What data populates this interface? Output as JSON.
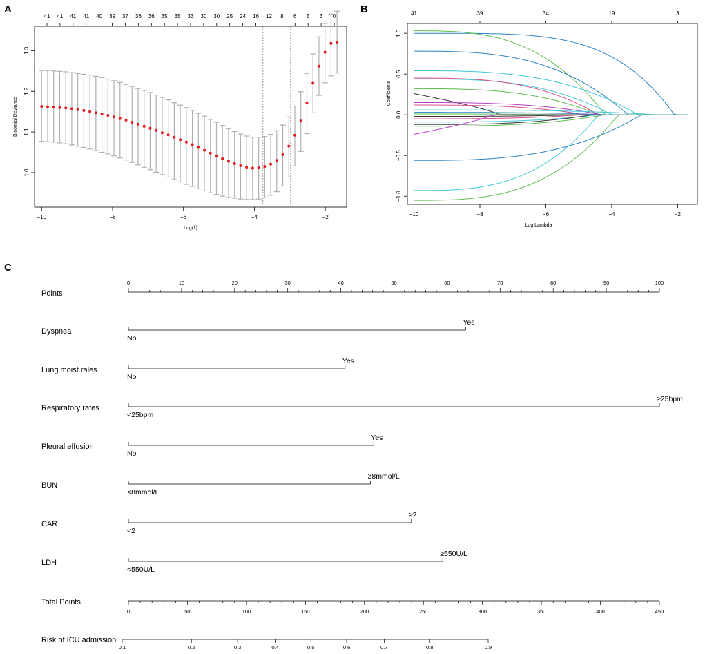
{
  "panel_labels": {
    "a": "A",
    "b": "B",
    "c": "C"
  },
  "chart_data": [
    {
      "id": "A",
      "type": "scatter",
      "subtype": "cross-validation error bars",
      "xlabel": "Log(λ)",
      "ylabel": "Binomial Deviance",
      "xlim": [
        -10.2,
        -1.4
      ],
      "ylim": [
        0.915,
        1.36
      ],
      "x_ticks": [
        -10,
        -8,
        -6,
        -4,
        -2
      ],
      "y_ticks": [
        1.0,
        1.1,
        1.2,
        1.3
      ],
      "x_tick_labels": [
        "−10",
        "−8",
        "−6",
        "−4",
        "−2"
      ],
      "y_tick_labels": [
        "1.0",
        "1.1",
        "1.2",
        "1.3"
      ],
      "top_axis_positions": [
        -10,
        -9.72,
        -9.44,
        -9.16,
        -8.88,
        -8.6,
        -8.32,
        -8.04,
        -7.76,
        -7.48,
        -7.2,
        -6.92,
        -6.64,
        -6.36,
        -6.08,
        -5.8,
        -5.52,
        -5.24,
        -4.96,
        -4.68,
        -4.4,
        -4.12,
        -3.84,
        -3.56,
        -3.28,
        -3.0,
        -2.72,
        -2.44,
        -2.16,
        -1.88
      ],
      "top_axis_labels": [
        "41",
        "41",
        "41",
        "41",
        "40",
        "39",
        "37",
        "36",
        "36",
        "35",
        "35",
        "33",
        "30",
        "30",
        "25",
        "24",
        "16",
        "12",
        "8",
        "6",
        "5",
        "3",
        "0"
      ],
      "top_axis_label_x": [
        -10,
        -9.59,
        -9.18,
        -8.77,
        -8.36,
        -7.94,
        -7.53,
        -7.12,
        -6.71,
        -6.3,
        -5.89,
        -5.48,
        -5.07,
        -4.66,
        -4.25,
        -3.84,
        -3.43,
        -3.02,
        -2.61,
        -2.2,
        -1.79,
        -1.68,
        -1.64
      ],
      "x": [
        -10,
        -9.83,
        -9.66,
        -9.49,
        -9.32,
        -9.15,
        -8.98,
        -8.81,
        -8.64,
        -8.47,
        -8.3,
        -8.13,
        -7.96,
        -7.79,
        -7.62,
        -7.45,
        -7.28,
        -7.11,
        -6.94,
        -6.77,
        -6.6,
        -6.43,
        -6.26,
        -6.09,
        -5.92,
        -5.75,
        -5.58,
        -5.41,
        -5.24,
        -5.07,
        -4.9,
        -4.73,
        -4.56,
        -4.39,
        -4.22,
        -4.05,
        -3.88,
        -3.71,
        -3.54,
        -3.37,
        -3.2,
        -3.03,
        -2.86,
        -2.69,
        -2.52,
        -2.35,
        -2.18,
        -2.01,
        -1.84,
        -1.67
      ],
      "y": [
        1.163,
        1.162,
        1.161,
        1.16,
        1.159,
        1.157,
        1.155,
        1.153,
        1.15,
        1.147,
        1.144,
        1.141,
        1.137,
        1.133,
        1.129,
        1.124,
        1.119,
        1.114,
        1.109,
        1.104,
        1.098,
        1.093,
        1.087,
        1.081,
        1.075,
        1.069,
        1.062,
        1.055,
        1.048,
        1.041,
        1.034,
        1.028,
        1.022,
        1.017,
        1.013,
        1.011,
        1.012,
        1.015,
        1.021,
        1.03,
        1.044,
        1.065,
        1.092,
        1.127,
        1.172,
        1.22,
        1.262,
        1.296,
        1.318,
        1.321
      ],
      "err_low": [
        1.077,
        1.076,
        1.075,
        1.073,
        1.071,
        1.068,
        1.065,
        1.062,
        1.058,
        1.054,
        1.05,
        1.046,
        1.041,
        1.036,
        1.031,
        1.025,
        1.019,
        1.013,
        1.007,
        1.001,
        0.995,
        0.989,
        0.983,
        0.977,
        0.971,
        0.966,
        0.96,
        0.955,
        0.95,
        0.946,
        0.942,
        0.939,
        0.937,
        0.935,
        0.934,
        0.934,
        0.935,
        0.938,
        0.944,
        0.953,
        0.967,
        0.989,
        1.016,
        1.052,
        1.096,
        1.147,
        1.19,
        1.221,
        1.238,
        1.245
      ],
      "err_high": [
        1.251,
        1.251,
        1.25,
        1.249,
        1.248,
        1.246,
        1.244,
        1.242,
        1.24,
        1.237,
        1.234,
        1.23,
        1.226,
        1.222,
        1.217,
        1.212,
        1.207,
        1.202,
        1.197,
        1.191,
        1.185,
        1.179,
        1.172,
        1.166,
        1.16,
        1.153,
        1.146,
        1.139,
        1.131,
        1.124,
        1.116,
        1.108,
        1.101,
        1.095,
        1.09,
        1.087,
        1.087,
        1.089,
        1.094,
        1.103,
        1.117,
        1.137,
        1.164,
        1.199,
        1.244,
        1.292,
        1.334,
        1.367,
        1.39,
        1.397
      ],
      "vlines": [
        -3.76,
        -2.98
      ],
      "point_color": "#e41a1c",
      "err_color": "#b0b0b0"
    },
    {
      "id": "B",
      "type": "line",
      "subtype": "lasso coefficient paths",
      "xlabel": "Log Lambda",
      "ylabel": "Coefficients",
      "xlim": [
        -10.2,
        -1.4
      ],
      "ylim": [
        -1.1,
        1.12
      ],
      "x_ticks": [
        -10,
        -8,
        -6,
        -4,
        -2
      ],
      "y_ticks": [
        -1.0,
        -0.5,
        0.0,
        0.5,
        1.0
      ],
      "x_tick_labels": [
        "−10",
        "−8",
        "−6",
        "−4",
        "−2"
      ],
      "y_tick_labels": [
        "−1.0",
        "−0.5",
        "0.0",
        "0.5",
        "1.0"
      ],
      "top_axis_positions": [
        -10,
        -8,
        -6,
        -4,
        -2
      ],
      "top_axis_labels": [
        "41",
        "39",
        "34",
        "19",
        "3"
      ],
      "series": [
        {
          "color": "#2b83c6",
          "start": 1.0,
          "end_x": -2.1,
          "style": "late"
        },
        {
          "color": "#5fbd4f",
          "start": 1.03,
          "end_x": -4.2,
          "style": "mid"
        },
        {
          "color": "#2b83c6",
          "start": 0.78,
          "end_x": -3.5,
          "style": "mid"
        },
        {
          "color": "#3ec8d8",
          "start": 0.54,
          "end_x": -3.2,
          "style": "mid"
        },
        {
          "color": "#3ec8d8",
          "start": 0.44,
          "end_x": -4.0,
          "style": "mid"
        },
        {
          "color": "#d94f8a",
          "start": 0.45,
          "end_x": -4.4,
          "style": "mid"
        },
        {
          "color": "#5fbd4f",
          "start": 0.32,
          "end_x": -4.4,
          "style": "mid"
        },
        {
          "color": "#333333",
          "start": 0.26,
          "end_x": -7.4,
          "style": "early"
        },
        {
          "color": "#b640c8",
          "start": 0.15,
          "end_x": -4.3,
          "style": "mid"
        },
        {
          "color": "#d94f8a",
          "start": 0.12,
          "end_x": -4.8,
          "style": "mid"
        },
        {
          "color": "#3ec8d8",
          "start": 0.06,
          "end_x": -2.6,
          "style": "mid"
        },
        {
          "color": "#2b83c6",
          "start": 0.03,
          "end_x": -4.1,
          "style": "mid"
        },
        {
          "color": "#5fbd4f",
          "start": 0.01,
          "end_x": -4.5,
          "style": "mid"
        },
        {
          "color": "#333333",
          "start": -0.02,
          "end_x": -5.0,
          "style": "mid"
        },
        {
          "color": "#d94f8a",
          "start": -0.05,
          "end_x": -4.9,
          "style": "mid"
        },
        {
          "color": "#3ec8d8",
          "start": -0.09,
          "end_x": -4.4,
          "style": "mid"
        },
        {
          "color": "#333333",
          "start": -0.12,
          "end_x": -4.6,
          "style": "mid"
        },
        {
          "color": "#5fbd4f",
          "start": -0.14,
          "end_x": -4.2,
          "style": "mid"
        },
        {
          "color": "#b640c8",
          "start": -0.24,
          "end_x": -7.6,
          "style": "early"
        },
        {
          "color": "#2b83c6",
          "start": -0.56,
          "end_x": -3.1,
          "style": "mid"
        },
        {
          "color": "#3ec8d8",
          "start": -0.93,
          "end_x": -4.4,
          "style": "mid"
        },
        {
          "color": "#5fbd4f",
          "start": -1.05,
          "end_x": -3.8,
          "style": "mid"
        }
      ]
    },
    {
      "id": "C",
      "type": "nomogram",
      "points_axis": {
        "label": "Points",
        "range": [
          0,
          100
        ],
        "major": [
          0,
          10,
          20,
          30,
          40,
          50,
          60,
          70,
          80,
          90,
          100
        ],
        "tick_labels": [
          "0",
          "10",
          "20",
          "30",
          "40",
          "50",
          "60",
          "70",
          "80",
          "90",
          "100"
        ]
      },
      "variables": [
        {
          "name": "Dyspnea",
          "low_label": "No",
          "high_label": "Yes",
          "points": 63.5
        },
        {
          "name": "Lung moist rales",
          "low_label": "No",
          "high_label": "Yes",
          "points": 40.8
        },
        {
          "name": "Respiratory rates",
          "low_label": "<25bpm",
          "high_label": "≥25bpm",
          "points": 100
        },
        {
          "name": "Pleural effusion",
          "low_label": "No",
          "high_label": "Yes",
          "points": 46.2
        },
        {
          "name": "BUN",
          "low_label": "<8mmol/L",
          "high_label": "≥8mmol/L",
          "points": 45.6
        },
        {
          "name": "CAR",
          "low_label": "<2",
          "high_label": "≥2",
          "points": 53.3
        },
        {
          "name": "LDH",
          "low_label": "<550U/L",
          "high_label": "≥550U/L",
          "points": 59.2
        }
      ],
      "total_points_axis": {
        "label": "Total Points",
        "range": [
          0,
          450
        ],
        "major": [
          0,
          50,
          100,
          150,
          200,
          250,
          300,
          350,
          400,
          450
        ],
        "tick_labels": [
          "0",
          "50",
          "100",
          "150",
          "200",
          "250",
          "300",
          "350",
          "400",
          "450"
        ]
      },
      "risk_axis": {
        "label": "Risk of ICU admission",
        "ticks_total_points": [
          0,
          57.8,
          96.4,
          127.8,
          157.6,
          187.5,
          218.8,
          256.8,
          305.7
        ],
        "tick_labels": [
          "0.1",
          "0.2",
          "0.3",
          "0.4",
          "0.5",
          "0.6",
          "0.7",
          "0.8",
          "0.9"
        ]
      }
    }
  ]
}
